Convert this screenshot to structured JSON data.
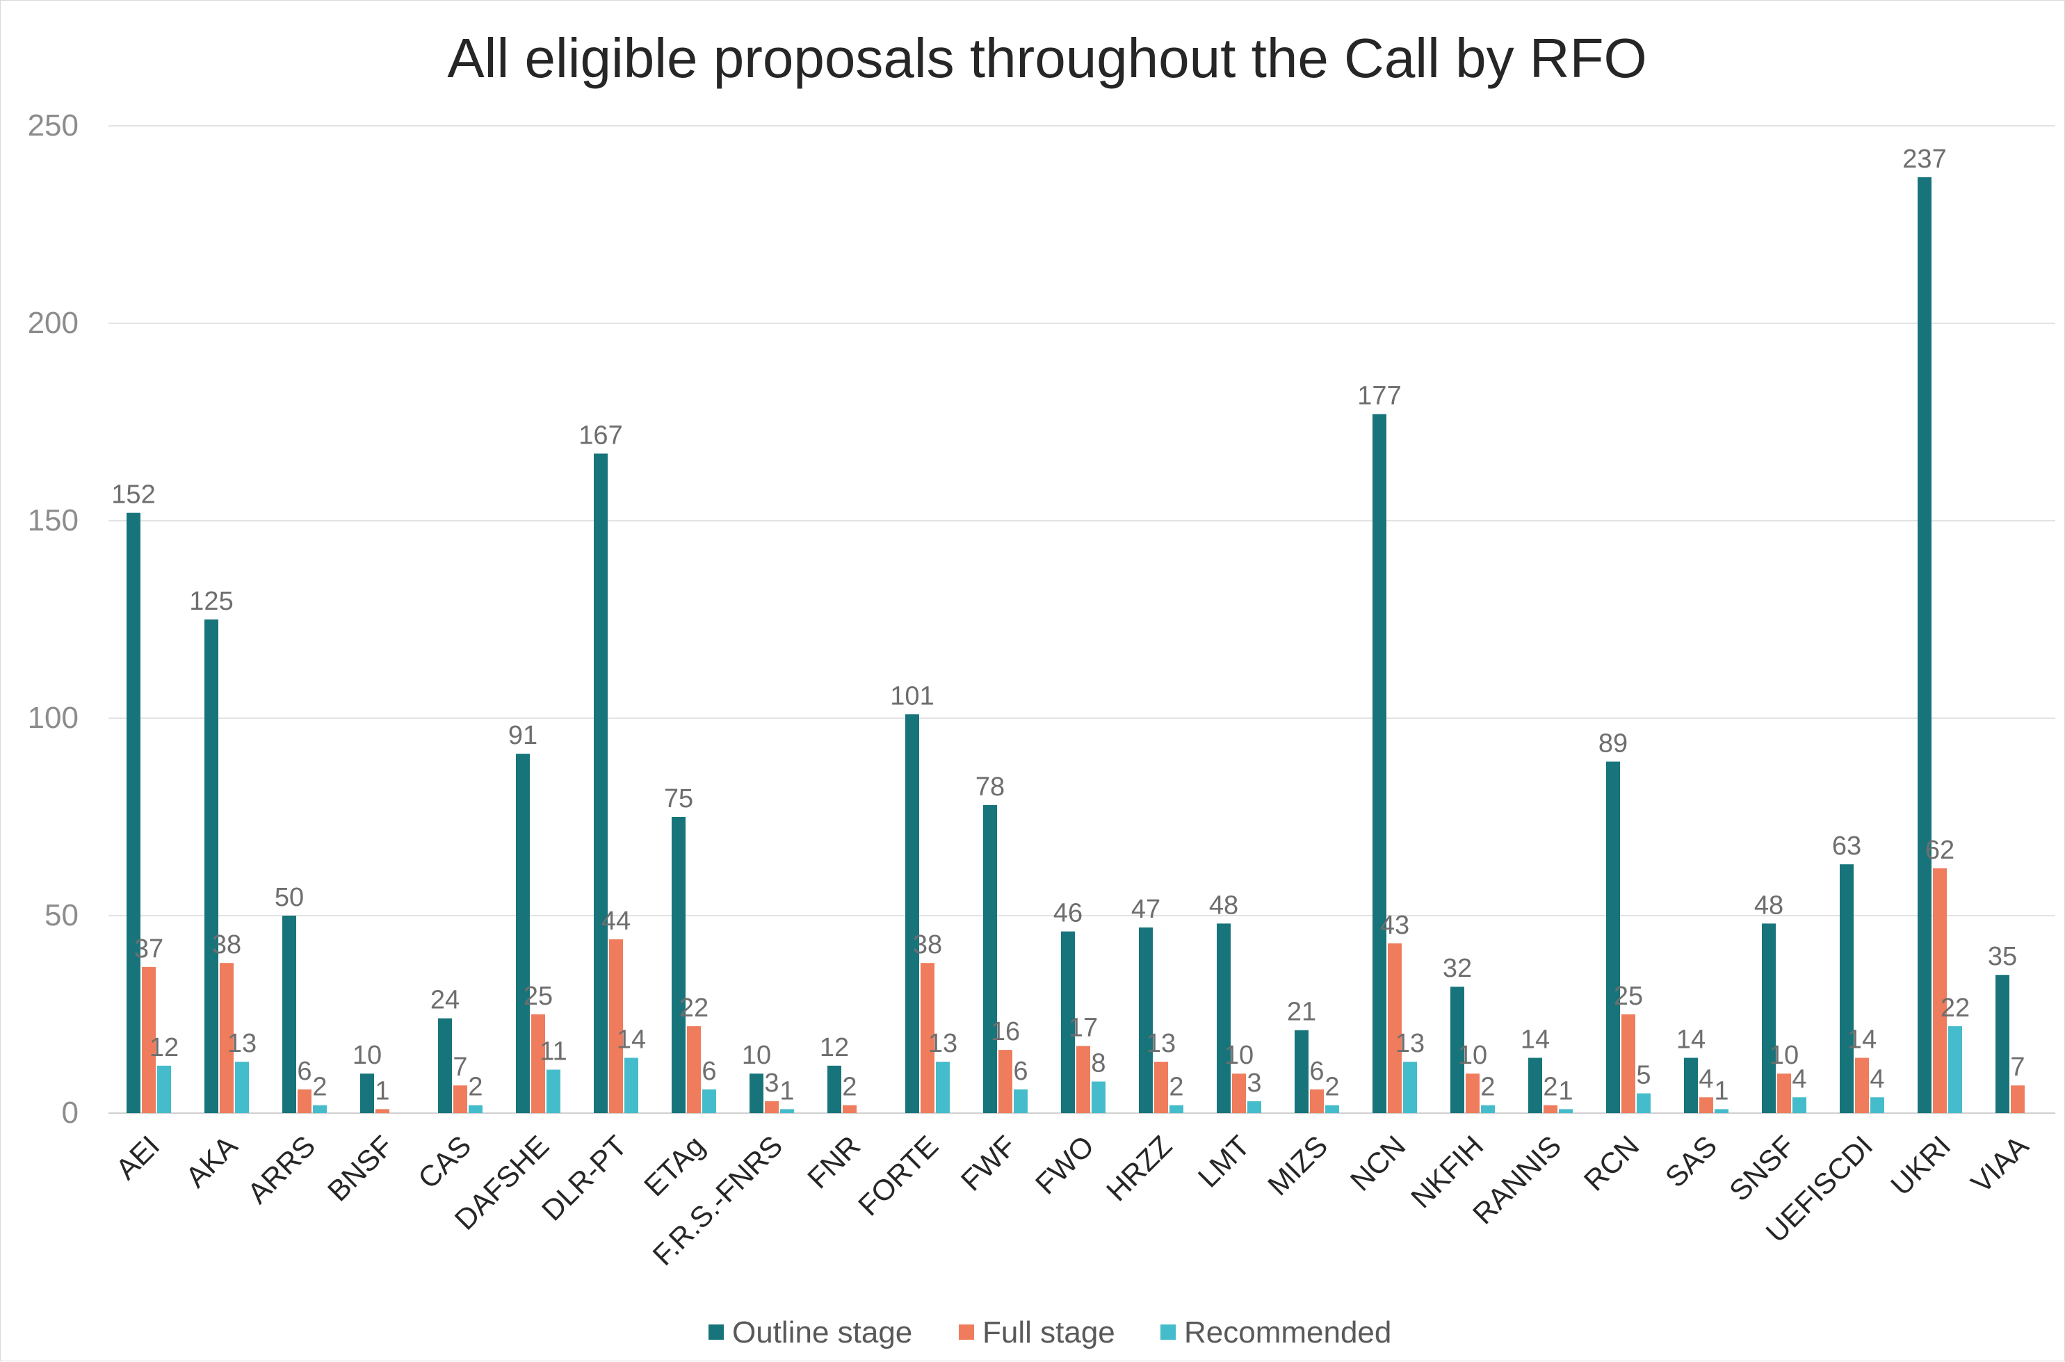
{
  "chart_data": {
    "type": "bar",
    "title": "All eligible proposals throughout the Call by RFO",
    "xlabel": "",
    "ylabel": "",
    "ylim": [
      0,
      250
    ],
    "yticks": [
      "0",
      "50",
      "100",
      "150",
      "200",
      "250"
    ],
    "grid": true,
    "legend": "bottom",
    "categories": [
      "AEI",
      "AKA",
      "ARRS",
      "BNSF",
      "CAS",
      "DAFSHE",
      "DLR-PT",
      "ETAg",
      "F.R.S.-FNRS",
      "FNR",
      "FORTE",
      "FWF",
      "FWO",
      "HRZZ",
      "LMT",
      "MIZS",
      "NCN",
      "NKFIH",
      "RANNIS",
      "RCN",
      "SAS",
      "SNSF",
      "UEFISCDI",
      "UKRI",
      "VIAA"
    ],
    "series": [
      {
        "name": "Outline stage",
        "color": "#17747b",
        "values": [
          152,
          125,
          50,
          10,
          24,
          91,
          167,
          75,
          10,
          12,
          101,
          78,
          46,
          47,
          48,
          21,
          177,
          32,
          14,
          89,
          14,
          48,
          63,
          237,
          35
        ]
      },
      {
        "name": "Full stage",
        "color": "#ef7c5c",
        "values": [
          37,
          38,
          6,
          1,
          7,
          25,
          44,
          22,
          3,
          2,
          38,
          16,
          17,
          13,
          10,
          6,
          43,
          10,
          2,
          25,
          4,
          10,
          14,
          62,
          7
        ]
      },
      {
        "name": "Recommended",
        "color": "#45bccb",
        "values": [
          12,
          13,
          2,
          null,
          2,
          11,
          14,
          6,
          1,
          null,
          13,
          6,
          8,
          2,
          3,
          2,
          13,
          2,
          1,
          5,
          1,
          4,
          4,
          22,
          null
        ]
      }
    ]
  }
}
